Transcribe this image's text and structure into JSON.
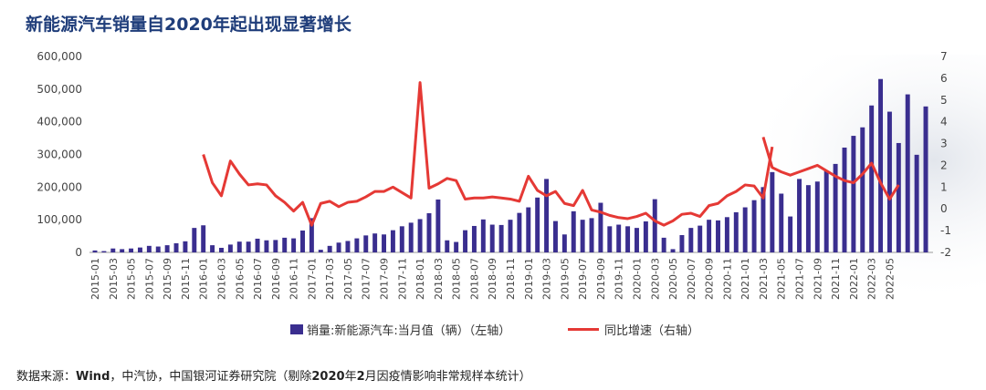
{
  "title": "新能源汽车销量自2020年起出现显著增长",
  "source": {
    "prefix": "数据来源：",
    "wind": "Wind",
    "mid1": "，中汽协，中国银河证券研究院（剔除",
    "bold2020": "2020",
    "mid2": "年",
    "bold2": "2",
    "suffix": "月因疫情影响非常规样本统计）"
  },
  "legend": {
    "bar_label": "销量:新能源汽车:当月值（辆）（左轴）",
    "line_label": "同比增速（右轴）"
  },
  "colors": {
    "bar": "#3a2e8f",
    "line": "#e53935",
    "title": "#1f3d7a"
  },
  "chart_data": {
    "type": "bar+line",
    "title": "新能源汽车销量自2020年起出现显著增长",
    "x_tick_labels": [
      "2015-01",
      "2015-03",
      "2015-05",
      "2015-07",
      "2015-09",
      "2015-11",
      "2016-01",
      "2016-03",
      "2016-05",
      "2016-07",
      "2016-09",
      "2016-11",
      "2017-01",
      "2017-03",
      "2017-05",
      "2017-07",
      "2017-09",
      "2017-11",
      "2018-01",
      "2018-03",
      "2018-05",
      "2018-07",
      "2018-09",
      "2018-11",
      "2019-01",
      "2019-03",
      "2019-05",
      "2019-07",
      "2019-09",
      "2019-11",
      "2020-01",
      "2020-03",
      "2020-05",
      "2020-07",
      "2020-09",
      "2020-11",
      "2021-01",
      "2021-03",
      "2021-05",
      "2021-07",
      "2021-09",
      "2021-11",
      "2022-01",
      "2022-03",
      "2022-05"
    ],
    "left_axis": {
      "min": 0,
      "max": 600000,
      "ticks": [
        "0",
        "100,000",
        "200,000",
        "300,000",
        "400,000",
        "500,000",
        "600,000"
      ]
    },
    "right_axis": {
      "min": -2,
      "max": 7,
      "ticks": [
        "-2",
        "-1",
        "0",
        "1",
        "2",
        "3",
        "4",
        "5",
        "6",
        "7"
      ]
    },
    "series": [
      {
        "name": "销量:新能源汽车:当月值（辆）（左轴）",
        "axis": "left",
        "type": "bar",
        "start": "2015-01",
        "values": [
          6000,
          4000,
          12000,
          10000,
          12000,
          15000,
          20000,
          18000,
          22000,
          28000,
          34000,
          75000,
          83000,
          22000,
          14000,
          24000,
          33000,
          33000,
          42000,
          37000,
          38000,
          45000,
          43000,
          67000,
          105000,
          8000,
          20000,
          30000,
          35000,
          43000,
          52000,
          58000,
          55000,
          68000,
          80000,
          91000,
          102000,
          120000,
          162000,
          37000,
          32000,
          68000,
          81000,
          101000,
          85000,
          84000,
          100000,
          121000,
          138000,
          168000,
          225000,
          96000,
          55000,
          126000,
          100000,
          105000,
          152000,
          80000,
          85000,
          80000,
          75000,
          95000,
          163000,
          45000,
          10000,
          53000,
          75000,
          82000,
          100000,
          98000,
          108000,
          123000,
          138000,
          160000,
          200000,
          246000,
          180000,
          110000,
          225000,
          206000,
          217000,
          250000,
          271000,
          321000,
          357000,
          383000,
          450000,
          531000,
          431000,
          335000,
          484000,
          299000,
          447000
        ]
      },
      {
        "name": "同比增速（右轴）",
        "axis": "right",
        "type": "line",
        "segments": [
          {
            "start": "2016-01",
            "values": [
              2.5,
              1.2,
              0.6,
              2.2,
              1.6,
              1.1,
              1.15,
              1.1,
              0.6,
              0.3,
              -0.1,
              0.3,
              -0.75,
              0.25,
              0.35,
              0.1,
              0.3,
              0.35,
              0.55,
              0.8,
              0.8,
              1.0,
              0.75,
              0.5,
              5.8,
              0.95,
              1.15,
              1.4,
              1.3,
              0.45,
              0.5,
              0.5,
              0.55,
              0.5,
              0.45,
              0.35,
              1.5,
              0.85,
              0.6,
              0.8,
              0.25,
              0.15,
              0.85,
              -0.05,
              -0.15,
              -0.3,
              -0.4,
              -0.45,
              -0.35,
              -0.2,
              -0.55,
              -0.75,
              -0.55,
              -0.25,
              -0.2,
              -0.35,
              0.15,
              0.25,
              0.6,
              0.8,
              1.1,
              1.05,
              0.5,
              2.85
            ]
          },
          {
            "start": "2021-03",
            "values": [
              3.3,
              1.9,
              1.7,
              1.55,
              1.7,
              1.85,
              2.0,
              1.75,
              1.5,
              1.3,
              1.2,
              1.6,
              2.1,
              1.2,
              0.45,
              1.1
            ]
          }
        ]
      }
    ]
  }
}
